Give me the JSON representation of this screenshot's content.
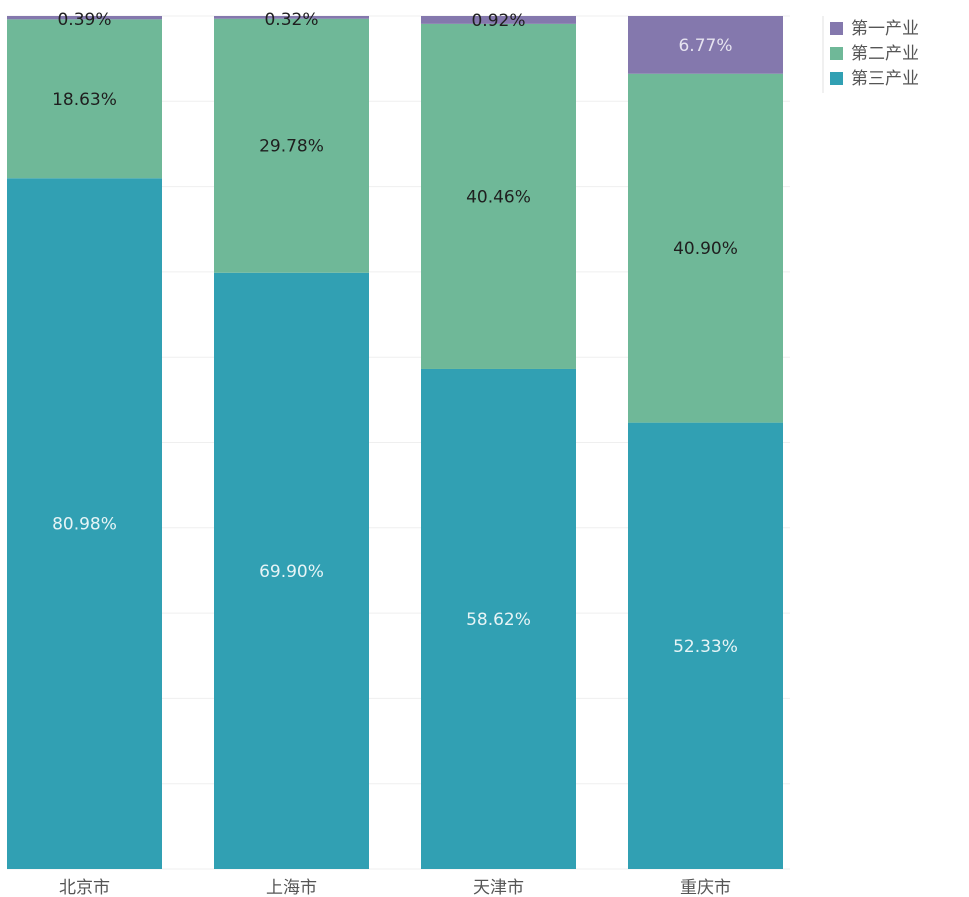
{
  "chart_data": {
    "type": "bar",
    "stacked": true,
    "normalized": true,
    "categories": [
      "北京市",
      "上海市",
      "天津市",
      "重庆市"
    ],
    "ylim": [
      0,
      100
    ],
    "grid": true,
    "legend_position": "top-right",
    "series": [
      {
        "name": "第三产业",
        "color": "#31a0b3",
        "label_color": "#e6f4f6",
        "values": [
          80.98,
          69.9,
          58.62,
          52.33
        ],
        "labels": [
          "80.98%",
          "69.90%",
          "58.62%",
          "52.33%"
        ]
      },
      {
        "name": "第二产业",
        "color": "#6fb898",
        "label_color": "#1f1f1f",
        "values": [
          18.63,
          29.78,
          40.46,
          40.9
        ],
        "labels": [
          "18.63%",
          "29.78%",
          "40.46%",
          "40.90%"
        ]
      },
      {
        "name": "第一产业",
        "color": "#8478ad",
        "label_color": "#1f1f1f",
        "values": [
          0.39,
          0.32,
          0.92,
          6.77
        ],
        "labels": [
          "0.39%",
          "0.32%",
          "0.92%",
          "6.77%"
        ],
        "label_colors": [
          "#1f1f1f",
          "#1f1f1f",
          "#1f1f1f",
          "#e6e3f0"
        ]
      }
    ],
    "legend_order": [
      "第一产业",
      "第二产业",
      "第三产业"
    ]
  }
}
